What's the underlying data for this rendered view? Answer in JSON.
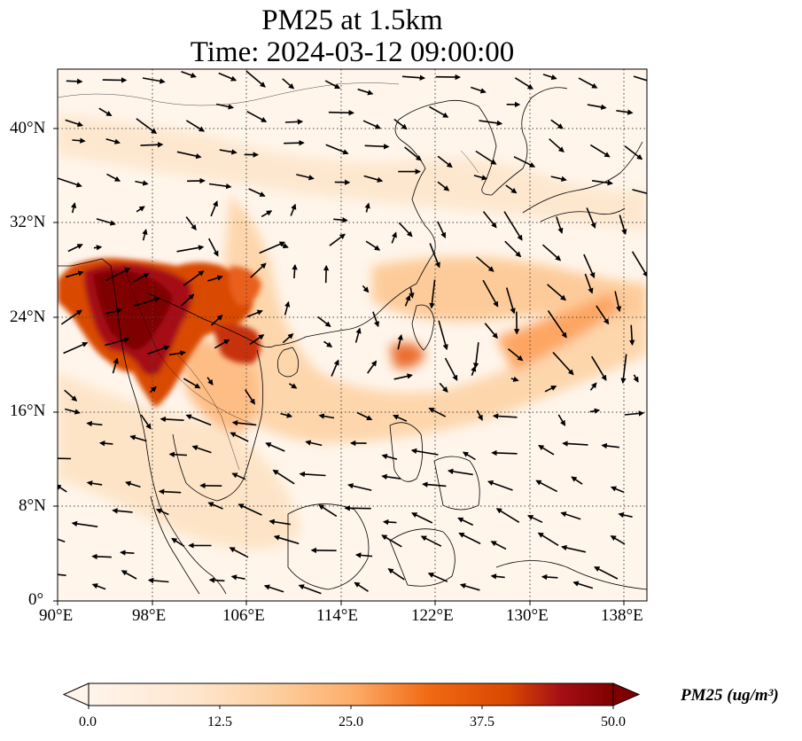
{
  "title_line1": "PM25 at 1.5km",
  "title_line2": "Time: 2024-03-12 09:00:00",
  "map": {
    "lon_range": [
      90,
      140
    ],
    "lat_range": [
      0,
      45
    ],
    "lon_ticks": [
      "90°E",
      "98°E",
      "106°E",
      "114°E",
      "122°E",
      "130°E",
      "138°E"
    ],
    "lat_ticks": [
      "0°",
      "8°N",
      "16°N",
      "24°N",
      "32°N",
      "40°N"
    ],
    "gridlines": true
  },
  "colorbar": {
    "title": "PM25 (ug/m³)",
    "ticks": [
      "0.0",
      "12.5",
      "25.0",
      "37.5",
      "50.0"
    ],
    "range": [
      0,
      50
    ],
    "colors": [
      "#fff5eb",
      "#fdd9b0",
      "#fdae6b",
      "#f16913",
      "#d94801",
      "#a50f15",
      "#7f0000"
    ]
  }
}
